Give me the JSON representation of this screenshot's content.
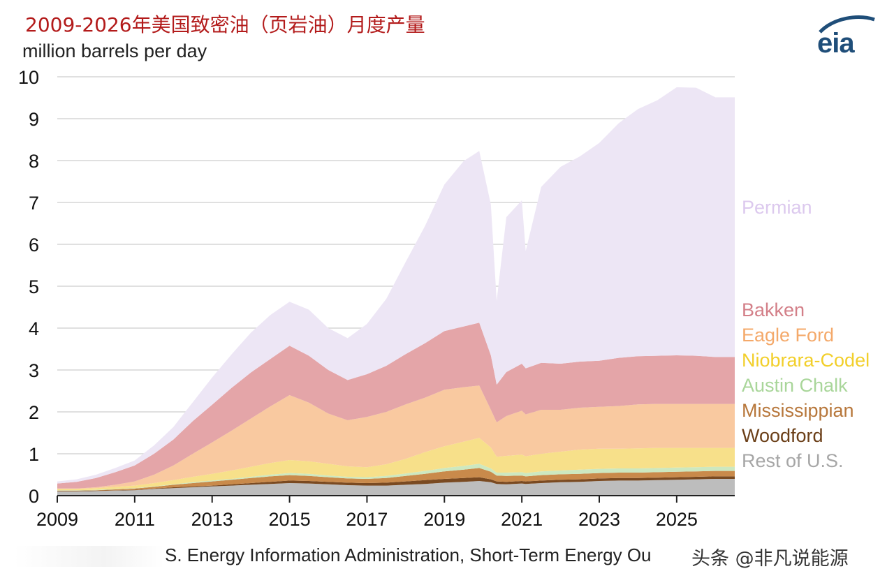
{
  "title": "2009-2026年美国致密油（页岩油）月度产量",
  "unit_label": "million barrels per day",
  "logo_text": "eia",
  "source_text": "S. Energy Information Administration, Short-Term Energy Ou",
  "watermark": "头条 @非凡说能源",
  "chart_data": {
    "type": "area",
    "stacked": true,
    "ylim": [
      0,
      10
    ],
    "y_ticks": [
      "0",
      "1",
      "2",
      "3",
      "4",
      "5",
      "6",
      "7",
      "8",
      "9",
      "10"
    ],
    "x_ticks": [
      "2009",
      "2011",
      "2013",
      "2015",
      "2017",
      "2019",
      "2021",
      "2023",
      "2025"
    ],
    "xlim": [
      2009,
      2026.5
    ],
    "grid": "horizontal",
    "legend_placement": "right",
    "x": [
      2009,
      2009.5,
      2010,
      2010.5,
      2011,
      2011.5,
      2012,
      2012.5,
      2013,
      2013.5,
      2014,
      2014.5,
      2015,
      2015.5,
      2016,
      2016.5,
      2017,
      2017.5,
      2018,
      2018.5,
      2019,
      2019.5,
      2019.9,
      2020.2,
      2020.35,
      2020.6,
      2021,
      2021.1,
      2021.5,
      2022,
      2022.5,
      2023,
      2023.5,
      2024,
      2024.5,
      2025,
      2025.5,
      2026,
      2026.5
    ],
    "series": [
      {
        "name": "Rest of U.S.",
        "color": "#bdbdbd",
        "values": [
          0.1,
          0.1,
          0.11,
          0.12,
          0.13,
          0.16,
          0.18,
          0.2,
          0.22,
          0.24,
          0.26,
          0.28,
          0.3,
          0.29,
          0.27,
          0.25,
          0.24,
          0.24,
          0.26,
          0.28,
          0.31,
          0.33,
          0.35,
          0.32,
          0.28,
          0.27,
          0.29,
          0.28,
          0.3,
          0.32,
          0.33,
          0.35,
          0.36,
          0.36,
          0.37,
          0.38,
          0.39,
          0.4,
          0.4
        ]
      },
      {
        "name": "Woodford",
        "color": "#7a4a21",
        "values": [
          0.01,
          0.01,
          0.01,
          0.01,
          0.01,
          0.01,
          0.02,
          0.02,
          0.02,
          0.03,
          0.04,
          0.05,
          0.06,
          0.06,
          0.06,
          0.06,
          0.06,
          0.07,
          0.08,
          0.09,
          0.09,
          0.09,
          0.09,
          0.07,
          0.06,
          0.06,
          0.06,
          0.06,
          0.06,
          0.06,
          0.06,
          0.06,
          0.06,
          0.06,
          0.06,
          0.06,
          0.06,
          0.06,
          0.06
        ]
      },
      {
        "name": "Mississippian",
        "color": "#c98a4b",
        "values": [
          0.01,
          0.01,
          0.01,
          0.02,
          0.03,
          0.04,
          0.06,
          0.08,
          0.1,
          0.11,
          0.12,
          0.13,
          0.13,
          0.12,
          0.11,
          0.1,
          0.1,
          0.11,
          0.13,
          0.15,
          0.18,
          0.2,
          0.22,
          0.18,
          0.14,
          0.14,
          0.13,
          0.12,
          0.13,
          0.13,
          0.13,
          0.13,
          0.13,
          0.13,
          0.13,
          0.13,
          0.13,
          0.13,
          0.13
        ]
      },
      {
        "name": "Austin Chalk",
        "color": "#cde8c0",
        "values": [
          0.01,
          0.01,
          0.01,
          0.01,
          0.01,
          0.01,
          0.01,
          0.02,
          0.02,
          0.02,
          0.03,
          0.04,
          0.05,
          0.05,
          0.04,
          0.04,
          0.04,
          0.05,
          0.06,
          0.07,
          0.08,
          0.09,
          0.1,
          0.08,
          0.07,
          0.08,
          0.08,
          0.08,
          0.09,
          0.09,
          0.1,
          0.1,
          0.1,
          0.1,
          0.1,
          0.1,
          0.1,
          0.1,
          0.1
        ]
      },
      {
        "name": "Niobrara-Codell",
        "color": "#f7e08a",
        "values": [
          0.03,
          0.03,
          0.04,
          0.05,
          0.06,
          0.08,
          0.1,
          0.13,
          0.16,
          0.2,
          0.24,
          0.28,
          0.31,
          0.3,
          0.28,
          0.25,
          0.24,
          0.28,
          0.35,
          0.45,
          0.52,
          0.58,
          0.62,
          0.5,
          0.38,
          0.4,
          0.42,
          0.4,
          0.42,
          0.45,
          0.48,
          0.48,
          0.47,
          0.48,
          0.48,
          0.47,
          0.46,
          0.45,
          0.45
        ]
      },
      {
        "name": "Eagle Ford",
        "color": "#f9c9a0",
        "values": [
          0.01,
          0.01,
          0.02,
          0.05,
          0.1,
          0.2,
          0.35,
          0.55,
          0.75,
          0.95,
          1.15,
          1.35,
          1.55,
          1.4,
          1.2,
          1.1,
          1.2,
          1.25,
          1.3,
          1.3,
          1.35,
          1.3,
          1.25,
          0.9,
          0.82,
          0.95,
          1.05,
          1.0,
          1.05,
          1.0,
          1.0,
          1.0,
          1.02,
          1.05,
          1.05,
          1.05,
          1.05,
          1.05,
          1.05
        ]
      },
      {
        "name": "Bakken",
        "color": "#e4a5a8",
        "values": [
          0.12,
          0.16,
          0.22,
          0.3,
          0.38,
          0.5,
          0.62,
          0.78,
          0.9,
          1.02,
          1.1,
          1.13,
          1.18,
          1.12,
          1.04,
          0.96,
          1.02,
          1.1,
          1.2,
          1.3,
          1.4,
          1.45,
          1.5,
          1.3,
          0.9,
          1.05,
          1.12,
          1.1,
          1.12,
          1.1,
          1.1,
          1.1,
          1.15,
          1.15,
          1.15,
          1.16,
          1.15,
          1.12,
          1.12
        ]
      },
      {
        "name": "Permian",
        "color": "#ede6f5",
        "values": [
          0.05,
          0.06,
          0.08,
          0.1,
          0.12,
          0.2,
          0.3,
          0.45,
          0.65,
          0.8,
          0.95,
          1.05,
          1.05,
          1.1,
          1.0,
          1.0,
          1.2,
          1.6,
          2.2,
          2.8,
          3.5,
          3.95,
          4.1,
          3.6,
          2.0,
          3.7,
          3.9,
          2.8,
          4.2,
          4.7,
          4.9,
          5.2,
          5.6,
          5.9,
          6.1,
          6.4,
          6.4,
          6.2,
          6.2
        ]
      }
    ],
    "labels": [
      {
        "name": "Permian",
        "color": "#dcc9ee",
        "y_value": 6.9
      },
      {
        "name": "Bakken",
        "color": "#d37f88",
        "y_value": 4.45
      },
      {
        "name": "Eagle Ford",
        "color": "#f4a96a",
        "y_value": 3.85
      },
      {
        "name": "Niobrara-Codel",
        "color": "#f2cf2a",
        "y_value": 3.25
      },
      {
        "name": "Austin Chalk",
        "color": "#a9d69a",
        "y_value": 2.65
      },
      {
        "name": "Mississippian",
        "color": "#b7773b",
        "y_value": 2.05
      },
      {
        "name": "Woodford",
        "color": "#6b3f18",
        "y_value": 1.45
      },
      {
        "name": "Rest of U.S.",
        "color": "#a6a6a6",
        "y_value": 0.85
      }
    ]
  }
}
